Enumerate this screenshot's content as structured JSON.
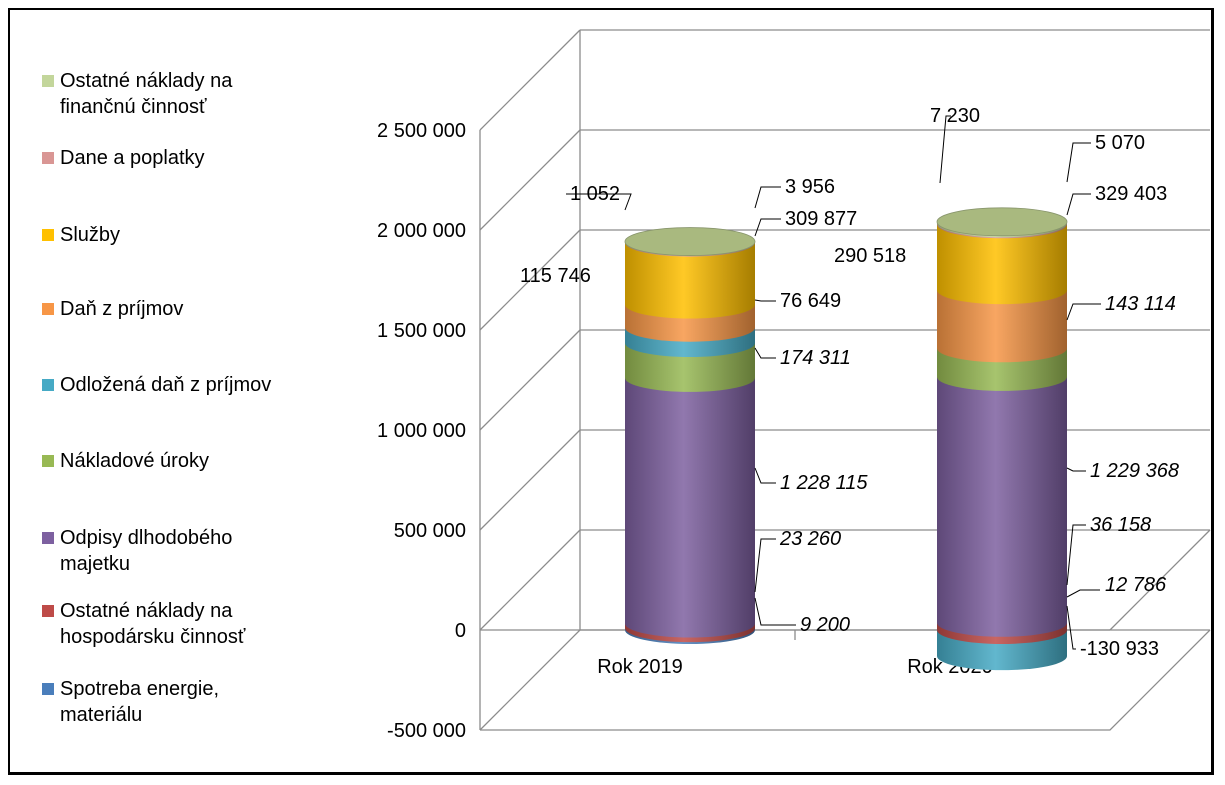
{
  "chart_data": {
    "type": "bar",
    "variant": "stacked-3d-cylinder",
    "title": "",
    "xlabel": "",
    "ylabel": "",
    "categories": [
      "Rok 2019",
      "Rok 2020"
    ],
    "ylim": [
      -500000,
      2500000
    ],
    "yticks": [
      2500000,
      2000000,
      1500000,
      1000000,
      500000,
      0,
      -500000
    ],
    "ytick_labels": [
      "2 500 000",
      "2 000 000",
      "1 500 000",
      "1 000 000",
      "500 000",
      "0",
      "-500 000"
    ],
    "grid": true,
    "legend_position": "left",
    "series": [
      {
        "name": "Spotreba energie, materiálu",
        "color": "#4a7ebb",
        "values": [
          9200,
          0
        ],
        "labels": [
          "9 200",
          ""
        ]
      },
      {
        "name": "Ostatné náklady na hospodársku činnosť",
        "color": "#be4b48",
        "values": [
          23260,
          36158
        ],
        "labels": [
          "23 260",
          "36 158"
        ]
      },
      {
        "name": "Odpisy dlhodobého majetku",
        "color": "#7d60a0",
        "values": [
          1228115,
          1229368
        ],
        "labels": [
          "1 228 115",
          "1 229 368"
        ]
      },
      {
        "name": "Nákladové úroky",
        "color": "#98b954",
        "values": [
          174311,
          143114
        ],
        "labels": [
          "174 311",
          "143 114"
        ]
      },
      {
        "name": "Odložená daň z príjmov",
        "color": "#46aac5",
        "values": [
          76649,
          -130933
        ],
        "labels": [
          "76 649",
          "-130 933"
        ]
      },
      {
        "name": "Daň z príjmov",
        "color": "#f79646",
        "values": [
          115746,
          290518
        ],
        "labels": [
          "115 746",
          "290 518"
        ]
      },
      {
        "name": "Služby",
        "color": "#ffc000",
        "values": [
          309877,
          329403
        ],
        "labels": [
          "309 877",
          "329 403"
        ]
      },
      {
        "name": "Dane a poplatky",
        "color": "#d99694",
        "values": [
          3956,
          5070
        ],
        "labels": [
          "3 956",
          "5 070"
        ]
      },
      {
        "name": "Ostatné náklady na finančnú činnosť",
        "color": "#c3d69b",
        "values": [
          1052,
          7230
        ],
        "labels": [
          "1 052",
          "7 230"
        ]
      }
    ],
    "extra_labels": [
      {
        "text": "12 786",
        "category": 1
      }
    ]
  }
}
